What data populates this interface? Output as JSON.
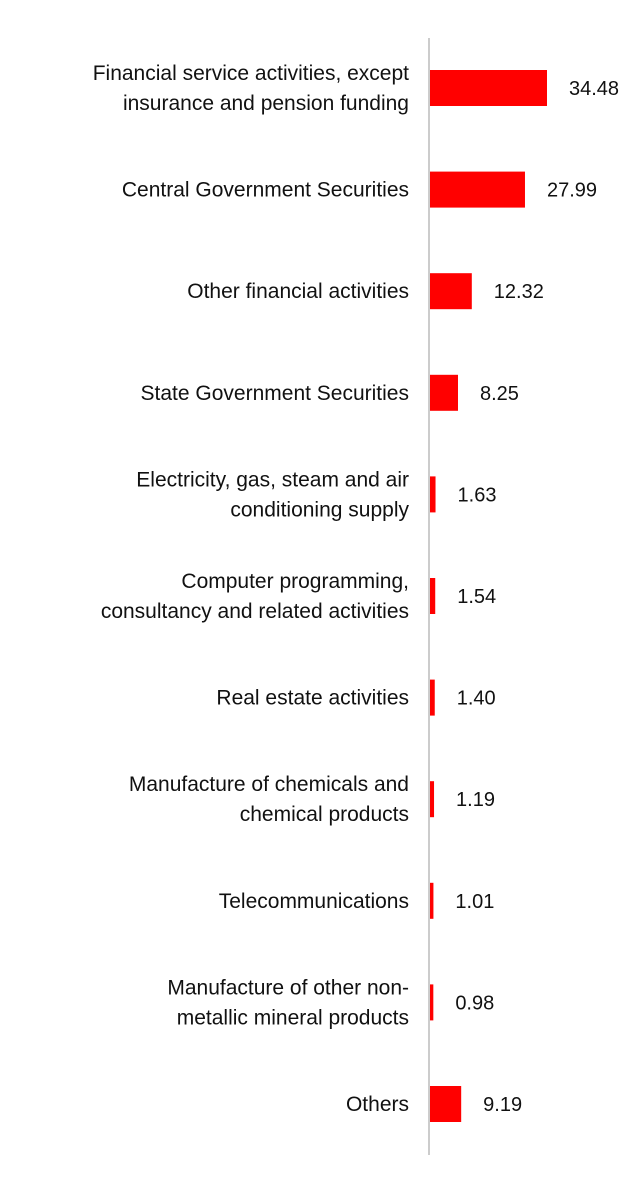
{
  "colors": {
    "bar": "#ff0000",
    "axis": "#cccccc",
    "text": "#111111"
  },
  "chart_data": {
    "type": "bar",
    "orientation": "horizontal",
    "title": "",
    "xlabel": "",
    "ylabel": "",
    "grid": false,
    "xlim": [
      0,
      34.48
    ],
    "categories": [
      [
        "Financial service activities, except",
        "insurance and pension funding"
      ],
      [
        "Central Government Securities"
      ],
      [
        "Other financial activities"
      ],
      [
        "State Government Securities"
      ],
      [
        "Electricity, gas, steam and air",
        "conditioning supply"
      ],
      [
        "Computer programming,",
        "consultancy and related activities"
      ],
      [
        "Real estate activities"
      ],
      [
        "Manufacture of chemicals and",
        "chemical products"
      ],
      [
        "Telecommunications"
      ],
      [
        "Manufacture of other non-",
        "metallic mineral products"
      ],
      [
        "Others"
      ]
    ],
    "values": [
      34.48,
      27.99,
      12.32,
      8.25,
      1.63,
      1.54,
      1.4,
      1.19,
      1.01,
      0.98,
      9.19
    ],
    "data_labels": [
      "34.48",
      "27.99",
      "12.32",
      "8.25",
      "1.63",
      "1.54",
      "1.40",
      "1.19",
      "1.01",
      "0.98",
      "9.19"
    ]
  }
}
